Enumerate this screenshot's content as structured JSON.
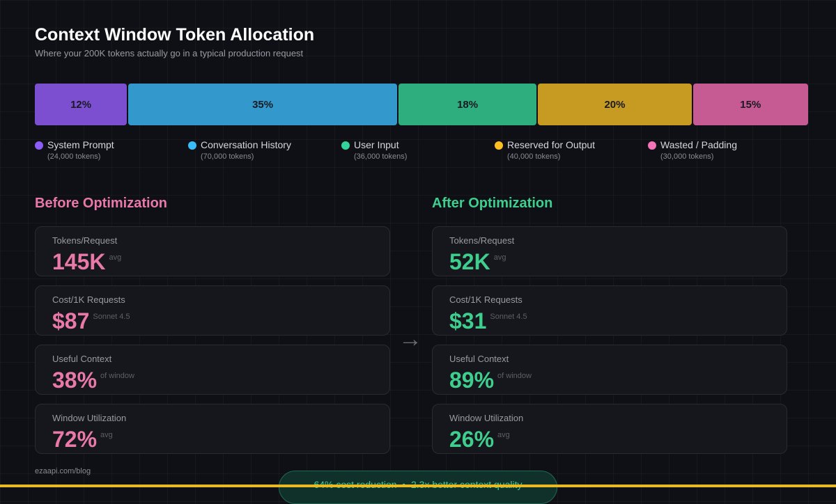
{
  "header": {
    "title": "Context Window Token Allocation",
    "subtitle": "Where your 200K tokens actually go in a typical production request"
  },
  "allocation": {
    "segments": [
      {
        "label": "System Prompt",
        "tokens": "(24,000 tokens)",
        "value": 12,
        "value_label": "12%",
        "color": "#7b4fcf",
        "dot": "#8b5cf6"
      },
      {
        "label": "Conversation History",
        "tokens": "(70,000 tokens)",
        "value": 35,
        "value_label": "35%",
        "color": "#3399cc",
        "dot": "#38bdf8"
      },
      {
        "label": "User Input",
        "tokens": "(36,000 tokens)",
        "value": 18,
        "value_label": "18%",
        "color": "#2ead7e",
        "dot": "#34d399"
      },
      {
        "label": "Reserved for Output",
        "tokens": "(40,000 tokens)",
        "value": 20,
        "value_label": "20%",
        "color": "#c79a22",
        "dot": "#fbbf24"
      },
      {
        "label": "Wasted / Padding",
        "tokens": "(30,000 tokens)",
        "value": 15,
        "value_label": "15%",
        "color": "#c65a93",
        "dot": "#f472b6"
      }
    ]
  },
  "before": {
    "title": "Before Optimization",
    "color": "#e879a8",
    "cards": [
      {
        "label": "Tokens/Request",
        "value": "145K",
        "unit": "avg"
      },
      {
        "label": "Cost/1K Requests",
        "value": "$87",
        "unit": "Sonnet 4.5"
      },
      {
        "label": "Useful Context",
        "value": "38%",
        "unit": "of window"
      },
      {
        "label": "Window Utilization",
        "value": "72%",
        "unit": "avg"
      }
    ]
  },
  "after": {
    "title": "After Optimization",
    "color": "#3ecf8e",
    "cards": [
      {
        "label": "Tokens/Request",
        "value": "52K",
        "unit": "avg"
      },
      {
        "label": "Cost/1K Requests",
        "value": "$31",
        "unit": "Sonnet 4.5"
      },
      {
        "label": "Useful Context",
        "value": "89%",
        "unit": "of window"
      },
      {
        "label": "Window Utilization",
        "value": "26%",
        "unit": "avg"
      }
    ]
  },
  "footer": {
    "source": "ezaapi.com/blog",
    "summary": "64% cost reduction  •  2.3x better context quality"
  }
}
